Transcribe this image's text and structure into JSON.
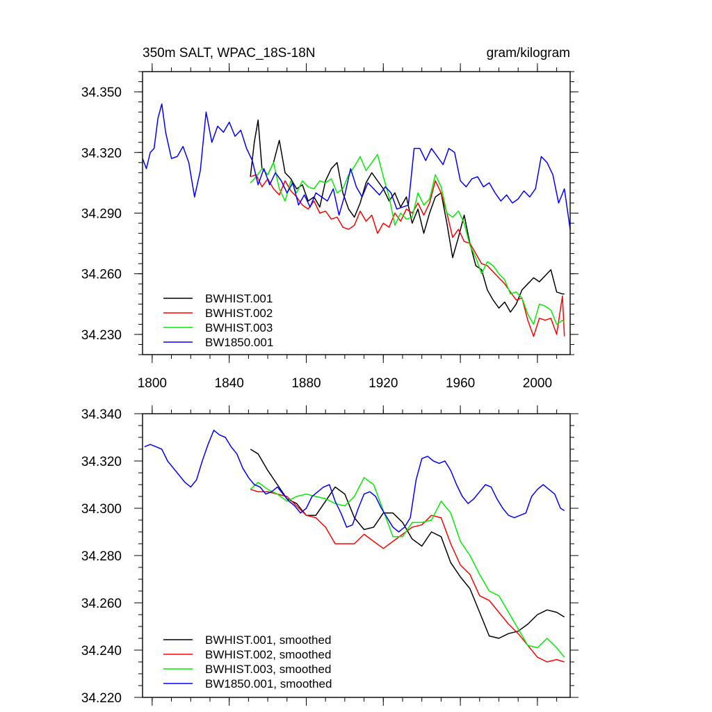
{
  "chart_data": [
    {
      "type": "line",
      "title_left": "350m SALT, WPAC_18S-18N",
      "title_right": "gram/kilogram",
      "xlabel": "",
      "ylabel": "",
      "xlim": [
        1795,
        2017
      ],
      "ylim": [
        34.22,
        34.36
      ],
      "xticks": [
        1800,
        1840,
        1880,
        1920,
        1960,
        2000
      ],
      "xtick_labels": [
        "1800",
        "1840",
        "1880",
        "1920",
        "1960",
        "2000"
      ],
      "yticks": [
        34.23,
        34.26,
        34.29,
        34.32,
        34.35
      ],
      "ytick_labels": [
        "34.230",
        "34.260",
        "34.290",
        "34.320",
        "34.350"
      ],
      "legend_position": "bottom-left",
      "series": [
        {
          "name": "BWHIST.001",
          "color": "#000000",
          "x": [
            1851,
            1853,
            1855,
            1857,
            1860,
            1863,
            1866,
            1869,
            1872,
            1875,
            1878,
            1881,
            1884,
            1887,
            1890,
            1893,
            1896,
            1899,
            1902,
            1905,
            1908,
            1911,
            1914,
            1917,
            1920,
            1923,
            1926,
            1929,
            1932,
            1935,
            1938,
            1941,
            1944,
            1947,
            1950,
            1953,
            1956,
            1959,
            1962,
            1965,
            1968,
            1971,
            1974,
            1977,
            1980,
            1983,
            1986,
            1989,
            1992,
            1995,
            1998,
            2001,
            2004,
            2007,
            2010,
            2013,
            2014
          ],
          "values": [
            34.308,
            34.325,
            34.336,
            34.312,
            34.309,
            34.315,
            34.326,
            34.31,
            34.307,
            34.302,
            34.304,
            34.296,
            34.298,
            34.293,
            34.306,
            34.312,
            34.315,
            34.3,
            34.292,
            34.288,
            34.295,
            34.305,
            34.31,
            34.306,
            34.302,
            34.296,
            34.3,
            34.293,
            34.298,
            34.285,
            34.292,
            34.28,
            34.29,
            34.298,
            34.3,
            34.285,
            34.268,
            34.278,
            34.289,
            34.275,
            34.264,
            34.262,
            34.252,
            34.247,
            34.243,
            34.246,
            34.241,
            34.245,
            34.252,
            34.255,
            34.258,
            34.256,
            34.259,
            34.262,
            34.251,
            34.25,
            34.25
          ]
        },
        {
          "name": "BWHIST.002",
          "color": "#ff0000",
          "x": [
            1851,
            1854,
            1857,
            1860,
            1863,
            1866,
            1869,
            1872,
            1875,
            1878,
            1881,
            1884,
            1887,
            1890,
            1893,
            1896,
            1899,
            1902,
            1905,
            1908,
            1911,
            1914,
            1917,
            1920,
            1923,
            1926,
            1929,
            1932,
            1935,
            1938,
            1941,
            1944,
            1947,
            1950,
            1953,
            1956,
            1959,
            1962,
            1965,
            1968,
            1971,
            1974,
            1977,
            1980,
            1983,
            1986,
            1989,
            1992,
            1995,
            1998,
            2001,
            2004,
            2007,
            2010,
            2013,
            2014
          ],
          "values": [
            34.308,
            34.309,
            34.303,
            34.307,
            34.302,
            34.299,
            34.306,
            34.301,
            34.298,
            34.294,
            34.292,
            34.296,
            34.29,
            34.291,
            34.287,
            34.288,
            34.283,
            34.282,
            34.284,
            34.291,
            34.286,
            34.289,
            34.28,
            34.285,
            34.283,
            34.29,
            34.286,
            34.292,
            34.29,
            34.295,
            34.289,
            34.295,
            34.306,
            34.3,
            34.29,
            34.278,
            34.282,
            34.276,
            34.275,
            34.27,
            34.265,
            34.264,
            34.261,
            34.258,
            34.255,
            34.251,
            34.247,
            34.248,
            34.237,
            34.229,
            34.238,
            34.237,
            34.238,
            34.23,
            34.249,
            34.229
          ]
        },
        {
          "name": "BWHIST.003",
          "color": "#00ee00",
          "x": [
            1851,
            1854,
            1857,
            1860,
            1863,
            1866,
            1869,
            1872,
            1875,
            1878,
            1881,
            1884,
            1887,
            1890,
            1893,
            1896,
            1899,
            1902,
            1905,
            1908,
            1911,
            1914,
            1917,
            1920,
            1923,
            1926,
            1929,
            1932,
            1935,
            1938,
            1941,
            1944,
            1947,
            1950,
            1953,
            1956,
            1959,
            1962,
            1965,
            1968,
            1971,
            1974,
            1977,
            1980,
            1983,
            1986,
            1989,
            1992,
            1995,
            1998,
            2001,
            2004,
            2007,
            2010,
            2013,
            2014
          ],
          "values": [
            34.305,
            34.308,
            34.312,
            34.309,
            34.315,
            34.302,
            34.296,
            34.306,
            34.3,
            34.306,
            34.303,
            34.302,
            34.306,
            34.305,
            34.307,
            34.3,
            34.302,
            34.309,
            34.313,
            34.318,
            34.311,
            34.315,
            34.319,
            34.308,
            34.298,
            34.284,
            34.29,
            34.287,
            34.288,
            34.3,
            34.294,
            34.297,
            34.309,
            34.303,
            34.29,
            34.288,
            34.291,
            34.285,
            34.274,
            34.268,
            34.26,
            34.266,
            34.264,
            34.26,
            34.257,
            34.25,
            34.251,
            34.248,
            34.24,
            34.235,
            34.245,
            34.244,
            34.242,
            34.235,
            34.237,
            34.236
          ]
        },
        {
          "name": "BW1850.001",
          "color": "#0000ff",
          "x": [
            1795,
            1797,
            1799,
            1801,
            1803,
            1805,
            1807,
            1810,
            1813,
            1816,
            1819,
            1822,
            1825,
            1828,
            1831,
            1834,
            1837,
            1840,
            1843,
            1846,
            1849,
            1852,
            1855,
            1858,
            1861,
            1864,
            1867,
            1870,
            1873,
            1876,
            1879,
            1882,
            1885,
            1888,
            1891,
            1894,
            1897,
            1900,
            1903,
            1906,
            1909,
            1912,
            1915,
            1918,
            1921,
            1924,
            1927,
            1930,
            1933,
            1936,
            1939,
            1942,
            1945,
            1948,
            1951,
            1954,
            1957,
            1960,
            1963,
            1966,
            1969,
            1972,
            1975,
            1978,
            1981,
            1984,
            1987,
            1990,
            1993,
            1996,
            1999,
            2002,
            2005,
            2008,
            2011,
            2014,
            2017
          ],
          "values": [
            34.317,
            34.312,
            34.32,
            34.322,
            34.337,
            34.344,
            34.33,
            34.317,
            34.318,
            34.323,
            34.315,
            34.298,
            34.311,
            34.34,
            34.325,
            34.333,
            34.33,
            34.335,
            34.328,
            34.331,
            34.322,
            34.316,
            34.304,
            34.312,
            34.304,
            34.31,
            34.306,
            34.3,
            34.305,
            34.294,
            34.299,
            34.293,
            34.3,
            34.298,
            34.296,
            34.302,
            34.289,
            34.299,
            34.312,
            34.303,
            34.298,
            34.305,
            34.302,
            34.299,
            34.303,
            34.3,
            34.292,
            34.293,
            34.294,
            34.322,
            34.322,
            34.316,
            34.322,
            34.318,
            34.314,
            34.322,
            34.32,
            34.306,
            34.303,
            34.307,
            34.308,
            34.303,
            34.305,
            34.3,
            34.296,
            34.299,
            34.295,
            34.297,
            34.301,
            34.298,
            34.302,
            34.318,
            34.315,
            34.309,
            34.295,
            34.302,
            34.282
          ]
        }
      ]
    },
    {
      "type": "line",
      "title_left": "",
      "title_right": "",
      "xlabel": "",
      "ylabel": "",
      "xlim": [
        1795,
        2017
      ],
      "ylim": [
        34.22,
        34.34
      ],
      "xticks": [
        1800,
        1840,
        1880,
        1920,
        1960,
        2000
      ],
      "xtick_labels": [],
      "yticks": [
        34.22,
        34.24,
        34.26,
        34.28,
        34.3,
        34.32,
        34.34
      ],
      "ytick_labels": [
        "34.220",
        "34.240",
        "34.260",
        "34.280",
        "34.300",
        "34.320",
        "34.340"
      ],
      "legend_position": "bottom-left",
      "series": [
        {
          "name": "BWHIST.001, smoothed",
          "color": "#000000",
          "x": [
            1851,
            1855,
            1860,
            1865,
            1870,
            1875,
            1880,
            1885,
            1890,
            1895,
            1900,
            1905,
            1910,
            1915,
            1920,
            1925,
            1930,
            1935,
            1940,
            1945,
            1950,
            1955,
            1960,
            1965,
            1970,
            1975,
            1980,
            1985,
            1990,
            1995,
            2000,
            2005,
            2010,
            2014
          ],
          "values": [
            34.325,
            34.323,
            34.316,
            34.31,
            34.304,
            34.302,
            34.297,
            34.297,
            34.303,
            34.309,
            34.306,
            34.296,
            34.291,
            34.292,
            34.298,
            34.298,
            34.294,
            34.287,
            34.284,
            34.29,
            34.288,
            34.277,
            34.271,
            34.266,
            34.256,
            34.246,
            34.245,
            34.247,
            34.248,
            34.251,
            34.255,
            34.257,
            34.256,
            34.254
          ]
        },
        {
          "name": "BWHIST.002, smoothed",
          "color": "#ff0000",
          "x": [
            1851,
            1855,
            1860,
            1865,
            1870,
            1875,
            1880,
            1885,
            1890,
            1895,
            1900,
            1905,
            1910,
            1915,
            1920,
            1925,
            1930,
            1935,
            1940,
            1945,
            1950,
            1955,
            1960,
            1965,
            1970,
            1975,
            1980,
            1985,
            1990,
            1995,
            2000,
            2005,
            2010,
            2014
          ],
          "values": [
            34.308,
            34.307,
            34.307,
            34.306,
            34.305,
            34.301,
            34.297,
            34.296,
            34.292,
            34.285,
            34.285,
            34.285,
            34.289,
            34.286,
            34.283,
            34.286,
            34.289,
            34.292,
            34.293,
            34.297,
            34.296,
            34.285,
            34.276,
            34.272,
            34.263,
            34.261,
            34.256,
            34.251,
            34.247,
            34.242,
            34.237,
            34.235,
            34.236,
            34.235
          ]
        },
        {
          "name": "BWHIST.003, smoothed",
          "color": "#00ee00",
          "x": [
            1851,
            1855,
            1860,
            1865,
            1870,
            1875,
            1880,
            1885,
            1890,
            1895,
            1900,
            1905,
            1910,
            1915,
            1920,
            1925,
            1930,
            1935,
            1940,
            1945,
            1950,
            1955,
            1960,
            1965,
            1970,
            1975,
            1980,
            1985,
            1990,
            1995,
            2000,
            2005,
            2010,
            2014
          ],
          "values": [
            34.308,
            34.311,
            34.308,
            34.306,
            34.303,
            34.305,
            34.306,
            34.305,
            34.304,
            34.302,
            34.301,
            34.305,
            34.313,
            34.31,
            34.299,
            34.288,
            34.288,
            34.294,
            34.294,
            34.295,
            34.303,
            34.298,
            34.286,
            34.28,
            34.272,
            34.265,
            34.263,
            34.256,
            34.249,
            34.242,
            34.241,
            34.245,
            34.241,
            34.237
          ]
        },
        {
          "name": "BW1850.001, smoothed",
          "color": "#0000ff",
          "x": [
            1796,
            1799,
            1802,
            1805,
            1808,
            1811,
            1814,
            1817,
            1820,
            1823,
            1826,
            1829,
            1832,
            1835,
            1838,
            1841,
            1844,
            1847,
            1850,
            1853,
            1856,
            1859,
            1862,
            1865,
            1868,
            1871,
            1874,
            1877,
            1880,
            1883,
            1886,
            1889,
            1892,
            1895,
            1898,
            1901,
            1904,
            1907,
            1910,
            1913,
            1916,
            1919,
            1922,
            1925,
            1928,
            1931,
            1934,
            1937,
            1940,
            1943,
            1946,
            1949,
            1952,
            1955,
            1958,
            1961,
            1964,
            1967,
            1970,
            1973,
            1976,
            1979,
            1982,
            1985,
            1988,
            1991,
            1994,
            1997,
            2000,
            2003,
            2006,
            2009,
            2012,
            2014
          ],
          "values": [
            34.326,
            34.327,
            34.326,
            34.325,
            34.32,
            34.317,
            34.314,
            34.311,
            34.309,
            34.312,
            34.32,
            34.327,
            34.333,
            34.331,
            34.33,
            34.326,
            34.323,
            34.317,
            34.313,
            34.31,
            34.309,
            34.306,
            34.307,
            34.309,
            34.306,
            34.303,
            34.301,
            34.298,
            34.3,
            34.305,
            34.307,
            34.309,
            34.31,
            34.303,
            34.298,
            34.292,
            34.293,
            34.3,
            34.306,
            34.307,
            34.305,
            34.3,
            34.296,
            34.292,
            34.29,
            34.292,
            34.296,
            34.312,
            34.321,
            34.322,
            34.32,
            34.319,
            34.32,
            34.316,
            34.31,
            34.305,
            34.302,
            34.304,
            34.307,
            34.31,
            34.309,
            34.304,
            34.3,
            34.297,
            34.296,
            34.297,
            34.298,
            34.305,
            34.308,
            34.31,
            34.308,
            34.306,
            34.3,
            34.299
          ]
        }
      ]
    }
  ]
}
